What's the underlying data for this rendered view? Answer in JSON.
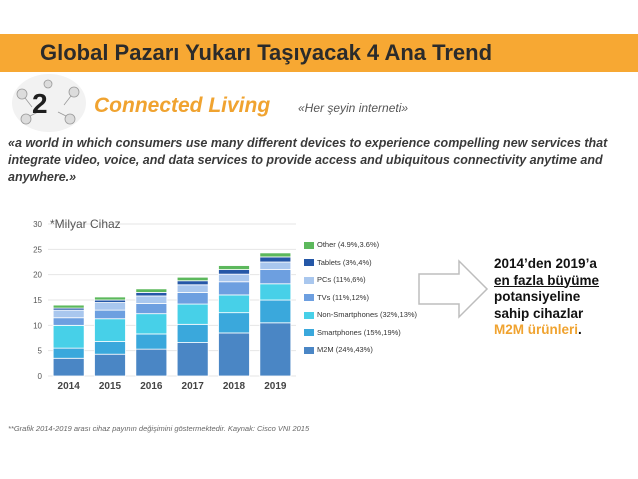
{
  "header": {
    "title": "Global Pazarı Yukarı Taşıyacak 4 Ana Trend"
  },
  "section": {
    "number": "2",
    "title": "Connected Living",
    "caption": "«Her şeyin interneti»"
  },
  "quote": "«a world in which consumers use many different devices to experience compelling new services that integrate video, voice, and data services to provide access and ubiquitous connectivity anytime and anywhere.»",
  "callout": {
    "line1": "2014’den 2019’a",
    "line2": "en fazla büyüme",
    "line3": "potansiyeline",
    "line4": "sahip cihazlar",
    "line5": "M2M ürünleri",
    "end": "."
  },
  "footnote": "**Grafik 2014-2019 arası cihaz payının değişimini göstermektedir. Kaynak: Cisco VNI 2015",
  "colors": {
    "accent": "#f7a833",
    "highlight": "#f0a330"
  },
  "chart_data": {
    "type": "bar",
    "stacked": true,
    "unit_label": "*Milyar Cihaz",
    "categories": [
      "2014",
      "2015",
      "2016",
      "2017",
      "2018",
      "2019"
    ],
    "ylim": [
      0,
      30
    ],
    "yticks": [
      0,
      5,
      10,
      15,
      20,
      25,
      30
    ],
    "series": [
      {
        "name": "M2M (24%,43%)",
        "color": "#4a86c5",
        "values": [
          3.5,
          4.3,
          5.3,
          6.6,
          8.5,
          10.5
        ]
      },
      {
        "name": "Smartphones (15%,19%)",
        "color": "#3aa8dc",
        "values": [
          2.0,
          2.5,
          3.0,
          3.6,
          4.0,
          4.5
        ]
      },
      {
        "name": "Non-Smartphones (32%,13%)",
        "color": "#47d0e8",
        "values": [
          4.5,
          4.5,
          4.0,
          4.0,
          3.5,
          3.2
        ]
      },
      {
        "name": "TVs (11%,12%)",
        "color": "#6d9fe0",
        "values": [
          1.5,
          1.7,
          2.0,
          2.3,
          2.6,
          2.8
        ]
      },
      {
        "name": "PCs (11%,6%)",
        "color": "#a9c7ee",
        "values": [
          1.5,
          1.5,
          1.5,
          1.5,
          1.5,
          1.5
        ]
      },
      {
        "name": "Tablets (3%,4%)",
        "color": "#2557a7",
        "values": [
          0.4,
          0.5,
          0.7,
          0.8,
          0.9,
          1.0
        ]
      },
      {
        "name": "Other (4.9%,3.6%)",
        "color": "#5cb85c",
        "values": [
          0.6,
          0.6,
          0.7,
          0.7,
          0.8,
          0.8
        ]
      }
    ]
  }
}
